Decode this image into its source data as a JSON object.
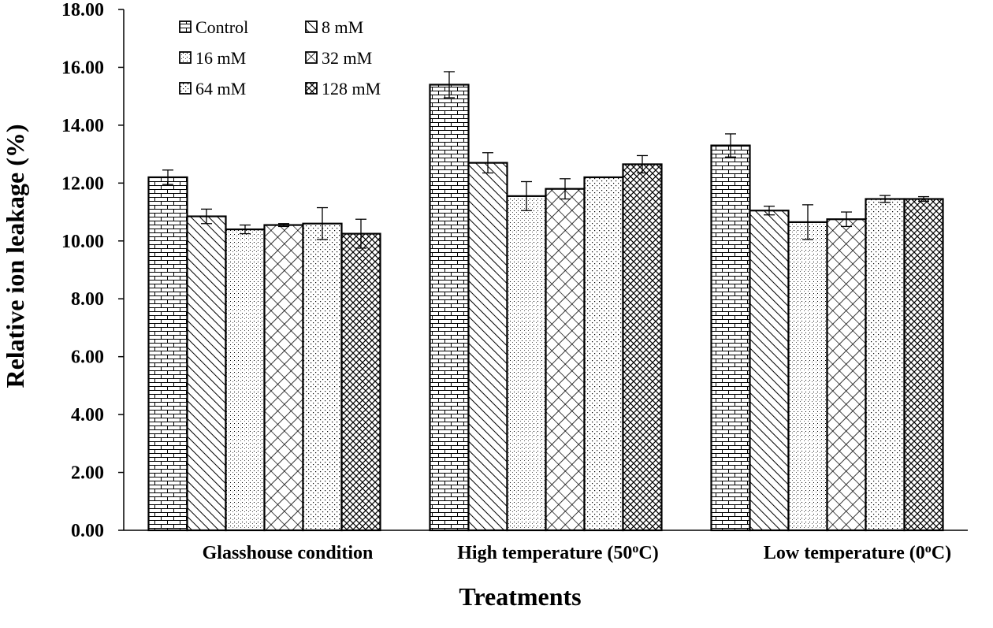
{
  "chart_data": {
    "type": "bar",
    "title": "",
    "xlabel": "Treatments",
    "ylabel": "Relative ion leakage (%)",
    "ylim": [
      0,
      18
    ],
    "ytick_step": 2,
    "ytick_labels": [
      "0.00",
      "2.00",
      "4.00",
      "6.00",
      "8.00",
      "10.00",
      "12.00",
      "14.00",
      "16.00",
      "18.00"
    ],
    "categories": [
      "Glasshouse condition",
      "High temperature (50oC)",
      "Low temperature (0oC)"
    ],
    "category_labels": [
      {
        "text": "Glasshouse condition"
      },
      {
        "pre": "High temperature (50",
        "sup": "o",
        "post": "C)"
      },
      {
        "pre": "Low temperature (0",
        "sup": "o",
        "post": "C)"
      }
    ],
    "series": [
      {
        "name": "Control",
        "pattern": "brick",
        "values": [
          12.2,
          15.4,
          13.3
        ],
        "errors": [
          0.25,
          0.45,
          0.4
        ]
      },
      {
        "name": "8 mM",
        "pattern": "diag",
        "values": [
          10.85,
          12.7,
          11.05
        ],
        "errors": [
          0.25,
          0.35,
          0.15
        ]
      },
      {
        "name": "16 mM",
        "pattern": "grid",
        "values": [
          10.4,
          11.55,
          10.65
        ],
        "errors": [
          0.15,
          0.5,
          0.6
        ]
      },
      {
        "name": "32 mM",
        "pattern": "diag2",
        "values": [
          10.55,
          11.8,
          10.75
        ],
        "errors": [
          0.05,
          0.35,
          0.25
        ]
      },
      {
        "name": "64 mM",
        "pattern": "dots",
        "values": [
          10.6,
          12.2,
          11.45
        ],
        "errors": [
          0.55,
          0.0,
          0.12
        ]
      },
      {
        "name": "128 mM",
        "pattern": "cross",
        "values": [
          10.25,
          12.65,
          11.45
        ],
        "errors": [
          0.5,
          0.3,
          0.08
        ]
      }
    ],
    "legend_position": "top-left"
  }
}
